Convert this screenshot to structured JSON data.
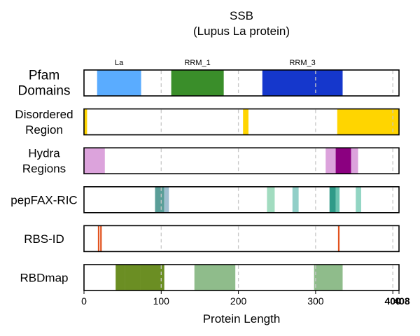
{
  "chart_data": {
    "type": "bar",
    "title": [
      "SSB",
      "(Lupus La protein)"
    ],
    "xlabel": "Protein Length",
    "xlim": [
      0,
      408
    ],
    "xticks": [
      0,
      100,
      200,
      300,
      400,
      408
    ],
    "grid_x": [
      100,
      200,
      300,
      400
    ],
    "grid": "dashed vertical",
    "rows": [
      {
        "label": [
          "Pfam",
          "Domains"
        ],
        "segments": [
          {
            "start": 17,
            "end": 74,
            "color": "#5aacff",
            "label": "La"
          },
          {
            "start": 113,
            "end": 181,
            "color": "#3a8e2a",
            "label": "RRM_1"
          },
          {
            "start": 231,
            "end": 335,
            "color": "#1537cc",
            "label": "RRM_3"
          }
        ]
      },
      {
        "label": [
          "Disordered",
          "Region"
        ],
        "segments": [
          {
            "start": 0,
            "end": 4,
            "color": "#ffd500"
          },
          {
            "start": 206,
            "end": 213,
            "color": "#ffd500"
          },
          {
            "start": 328,
            "end": 408,
            "color": "#ffd500"
          }
        ]
      },
      {
        "label": [
          "Hydra",
          "Regions"
        ],
        "segments": [
          {
            "start": 0,
            "end": 27,
            "color": "#dca3dc"
          },
          {
            "start": 313,
            "end": 326,
            "color": "#dca3dc"
          },
          {
            "start": 326,
            "end": 346,
            "color": "#8b0080"
          },
          {
            "start": 346,
            "end": 355,
            "color": "#dca3dc"
          }
        ]
      },
      {
        "label": [
          "pepFAX-RIC"
        ],
        "segments": [
          {
            "start": 92,
            "end": 104,
            "color": "#5a9e98"
          },
          {
            "start": 104,
            "end": 110,
            "color": "#9fbfd0"
          },
          {
            "start": 237,
            "end": 247,
            "color": "#a2dcc0"
          },
          {
            "start": 270,
            "end": 278,
            "color": "#92cfc8"
          },
          {
            "start": 318,
            "end": 326,
            "color": "#2f9a88"
          },
          {
            "start": 326,
            "end": 331,
            "color": "#6cc3b0"
          },
          {
            "start": 352,
            "end": 359,
            "color": "#92d5c3"
          }
        ]
      },
      {
        "label": [
          "RBS-ID"
        ],
        "segments": [
          {
            "start": 18,
            "end": 20,
            "color": "#e2531f"
          },
          {
            "start": 21,
            "end": 23,
            "color": "#e2531f"
          },
          {
            "start": 329,
            "end": 331,
            "color": "#e2531f"
          }
        ]
      },
      {
        "label": [
          "RBDmap"
        ],
        "segments": [
          {
            "start": 41,
            "end": 53,
            "color": "#6b8e23"
          },
          {
            "start": 53,
            "end": 73,
            "color": "#6b8e23"
          },
          {
            "start": 73,
            "end": 104,
            "color": "#6b8e23"
          },
          {
            "start": 143,
            "end": 196,
            "color": "#8fbc8b"
          },
          {
            "start": 298,
            "end": 335,
            "color": "#8fbc8b"
          }
        ]
      }
    ]
  }
}
